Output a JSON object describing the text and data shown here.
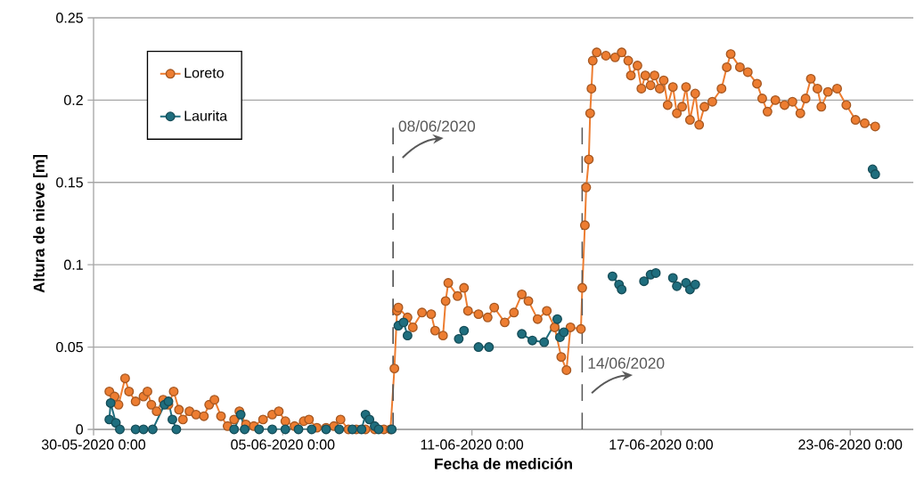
{
  "chart_data": {
    "type": "line",
    "xlabel": "Fecha de medición",
    "ylabel": "Altura de nieve [m]",
    "xlim": [
      "2020-05-30",
      "2020-06-25"
    ],
    "xticks": [
      {
        "value": "2020-05-30",
        "label": "30-05-2020 0:00"
      },
      {
        "value": "2020-06-05",
        "label": "05-06-2020 0:00"
      },
      {
        "value": "2020-06-11",
        "label": "11-06-2020 0:00"
      },
      {
        "value": "2020-06-17",
        "label": "17-06-2020 0:00"
      },
      {
        "value": "2020-06-23",
        "label": "23-06-2020 0:00"
      }
    ],
    "ylim": [
      0,
      0.25
    ],
    "yticks": [
      0,
      0.05,
      0.1,
      0.15,
      0.2,
      0.25
    ],
    "grid": "y",
    "legend": "top left",
    "marker": "circle",
    "line_style": "solid",
    "ref_lines": [
      {
        "axis": "x",
        "value": "2020-06-08T12:00",
        "label": "08/06/2020",
        "color": "#595959",
        "line_style": "dashed"
      },
      {
        "axis": "x",
        "value": "2020-06-14T12:00",
        "label": "14/06/2020",
        "color": "#595959",
        "line_style": "dashed"
      }
    ],
    "series": [
      {
        "name": "Loreto",
        "color": "#ed7d31",
        "x": [
          "2020-05-30T12:00",
          "2020-05-30T16:00",
          "2020-05-30T19:00",
          "2020-05-31T00:00",
          "2020-05-31T03:00",
          "2020-05-31T08:00",
          "2020-05-31T14:00",
          "2020-05-31T17:00",
          "2020-05-31T20:00",
          "2020-06-01T00:00",
          "2020-06-01T05:00",
          "2020-06-01T09:00",
          "2020-06-01T13:00",
          "2020-06-01T17:00",
          "2020-06-01T20:00",
          "2020-06-02T01:00",
          "2020-06-02T06:00",
          "2020-06-02T12:00",
          "2020-06-02T16:00",
          "2020-06-02T20:00",
          "2020-06-03T01:00",
          "2020-06-03T06:00",
          "2020-06-03T11:00",
          "2020-06-03T15:00",
          "2020-06-03T20:00",
          "2020-06-04T02:00",
          "2020-06-04T09:00",
          "2020-06-04T16:00",
          "2020-06-04T21:00",
          "2020-06-05T02:00",
          "2020-06-05T09:00",
          "2020-06-05T16:00",
          "2020-06-05T20:00",
          "2020-06-06T02:00",
          "2020-06-06T09:00",
          "2020-06-06T15:00",
          "2020-06-06T20:00",
          "2020-06-07T02:00",
          "2020-06-07T08:00",
          "2020-06-07T15:00",
          "2020-06-07T22:00",
          "2020-06-08T05:00",
          "2020-06-08T10:00",
          "2020-06-08T13:00",
          "2020-06-08T15:00",
          "2020-06-08T16:00",
          "2020-06-08T23:00",
          "2020-06-09T03:00",
          "2020-06-09T10:00",
          "2020-06-09T17:00",
          "2020-06-09T20:00",
          "2020-06-10T02:00",
          "2020-06-10T04:00",
          "2020-06-10T06:00",
          "2020-06-10T13:00",
          "2020-06-10T18:00",
          "2020-06-10T21:00",
          "2020-06-11T05:00",
          "2020-06-11T12:00",
          "2020-06-11T17:00",
          "2020-06-12T01:00",
          "2020-06-12T08:00",
          "2020-06-12T14:00",
          "2020-06-12T19:00",
          "2020-06-13T02:00",
          "2020-06-13T09:00",
          "2020-06-13T15:00",
          "2020-06-13T20:00",
          "2020-06-14T00:00",
          "2020-06-14T03:00",
          "2020-06-14T11:00",
          "2020-06-14T12:00",
          "2020-06-14T14:00",
          "2020-06-14T15:00",
          "2020-06-14T17:00",
          "2020-06-14T18:00",
          "2020-06-14T19:00",
          "2020-06-14T20:00",
          "2020-06-14T23:00",
          "2020-06-15T06:00",
          "2020-06-15T13:00",
          "2020-06-15T18:00",
          "2020-06-15T23:00",
          "2020-06-16T01:00",
          "2020-06-16T06:00",
          "2020-06-16T09:00",
          "2020-06-16T12:00",
          "2020-06-16T16:00",
          "2020-06-16T19:00",
          "2020-06-16T23:00",
          "2020-06-17T02:00",
          "2020-06-17T05:00",
          "2020-06-17T09:00",
          "2020-06-17T12:00",
          "2020-06-17T16:00",
          "2020-06-17T19:00",
          "2020-06-17T22:00",
          "2020-06-18T02:00",
          "2020-06-18T05:00",
          "2020-06-18T09:00",
          "2020-06-18T15:00",
          "2020-06-18T22:00",
          "2020-06-19T02:00",
          "2020-06-19T05:00",
          "2020-06-19T12:00",
          "2020-06-19T18:00",
          "2020-06-20T01:00",
          "2020-06-20T05:00",
          "2020-06-20T09:00",
          "2020-06-20T15:00",
          "2020-06-20T22:00",
          "2020-06-21T04:00",
          "2020-06-21T10:00",
          "2020-06-21T14:00",
          "2020-06-21T18:00",
          "2020-06-21T23:00",
          "2020-06-22T02:00",
          "2020-06-22T07:00",
          "2020-06-22T14:00",
          "2020-06-22T21:00",
          "2020-06-23T04:00",
          "2020-06-23T11:00",
          "2020-06-23T19:00"
        ],
        "values": [
          0.023,
          0.02,
          0.015,
          0.031,
          0.023,
          0.017,
          0.02,
          0.023,
          0.015,
          0.011,
          0.018,
          0.015,
          0.023,
          0.012,
          0.006,
          0.011,
          0.009,
          0.008,
          0.015,
          0.018,
          0.008,
          0.002,
          0.006,
          0.011,
          0.003,
          0.002,
          0.006,
          0.009,
          0.011,
          0.005,
          0.002,
          0.005,
          0.006,
          0.001,
          0.001,
          0.002,
          0.006,
          0,
          0,
          0,
          0,
          0,
          0,
          0.037,
          0.072,
          0.074,
          0.068,
          0.062,
          0.071,
          0.07,
          0.06,
          0.057,
          0.078,
          0.089,
          0.081,
          0.086,
          0.072,
          0.07,
          0.068,
          0.074,
          0.065,
          0.071,
          0.082,
          0.078,
          0.067,
          0.072,
          0.062,
          0.044,
          0.036,
          0.062,
          0.061,
          0.086,
          0.124,
          0.147,
          0.164,
          0.192,
          0.207,
          0.224,
          0.229,
          0.227,
          0.226,
          0.229,
          0.224,
          0.215,
          0.221,
          0.207,
          0.215,
          0.209,
          0.215,
          0.207,
          0.212,
          0.197,
          0.208,
          0.192,
          0.196,
          0.208,
          0.188,
          0.204,
          0.185,
          0.196,
          0.199,
          0.207,
          0.22,
          0.228,
          0.22,
          0.217,
          0.21,
          0.201,
          0.193,
          0.2,
          0.197,
          0.199,
          0.192,
          0.201,
          0.213,
          0.207,
          0.196,
          0.205,
          0.207,
          0.197,
          0.188,
          0.186,
          0.184
        ]
      },
      {
        "name": "Laurita",
        "color": "#1f6e7e",
        "x": [
          "2020-05-30T12:00",
          "2020-05-30T13:00",
          "2020-05-30T17:00",
          "2020-05-30T20:00",
          "2020-05-31T02:00",
          "2020-05-31T08:00",
          "2020-05-31T14:00",
          "2020-05-31T21:00",
          "2020-06-01T06:00",
          "2020-06-01T09:00",
          "2020-06-01T12:00",
          "2020-06-01T15:00",
          "2020-06-02T12:00",
          "2020-06-03T11:00",
          "2020-06-03T16:00",
          "2020-06-03T19:00",
          "2020-06-04T06:00",
          "2020-06-04T16:00",
          "2020-06-05T02:00",
          "2020-06-05T12:00",
          "2020-06-05T22:00",
          "2020-06-06T09:00",
          "2020-06-06T19:00",
          "2020-06-07T05:00",
          "2020-06-07T12:00",
          "2020-06-07T15:00",
          "2020-06-07T18:00",
          "2020-06-07T22:00",
          "2020-06-08T01:00",
          "2020-06-08T11:00",
          "2020-06-08T13:00",
          "2020-06-08T16:00",
          "2020-06-08T20:00",
          "2020-06-08T23:00",
          "2020-06-10T10:00",
          "2020-06-10T14:00",
          "2020-06-10T18:00",
          "2020-06-11T03:00",
          "2020-06-11T05:00",
          "2020-06-11T13:00",
          "2020-06-12T10:00",
          "2020-06-12T14:00",
          "2020-06-12T22:00",
          "2020-06-13T07:00",
          "2020-06-13T17:00",
          "2020-06-13T19:00",
          "2020-06-13T22:00",
          "2020-06-15T06:00",
          "2020-06-15T11:00",
          "2020-06-15T16:00",
          "2020-06-15T18:00",
          "2020-06-16T06:00",
          "2020-06-16T11:00",
          "2020-06-16T16:00",
          "2020-06-16T20:00",
          "2020-06-17T03:00",
          "2020-06-17T09:00",
          "2020-06-17T12:00",
          "2020-06-17T19:00",
          "2020-06-17T22:00",
          "2020-06-18T02:00",
          "2020-06-23T12:00",
          "2020-06-23T17:00",
          "2020-06-23T19:00"
        ],
        "values": [
          0.006,
          0.016,
          0.004,
          0,
          null,
          0,
          0,
          0,
          0.015,
          0.017,
          0.006,
          0,
          null,
          0,
          0.009,
          0,
          0,
          0,
          0,
          0,
          0,
          0,
          0,
          0,
          0,
          0.009,
          0.006,
          0.002,
          0,
          0,
          null,
          0.063,
          0.065,
          0.057,
          null,
          0.055,
          0.06,
          null,
          0.05,
          0.05,
          null,
          0.058,
          0.054,
          0.053,
          0.067,
          0.056,
          0.059,
          null,
          0.093,
          0.088,
          0.085,
          null,
          0.09,
          0.094,
          0.095,
          null,
          0.092,
          0.087,
          0.089,
          0.085,
          0.088,
          null,
          0.158,
          0.155
        ]
      }
    ]
  }
}
